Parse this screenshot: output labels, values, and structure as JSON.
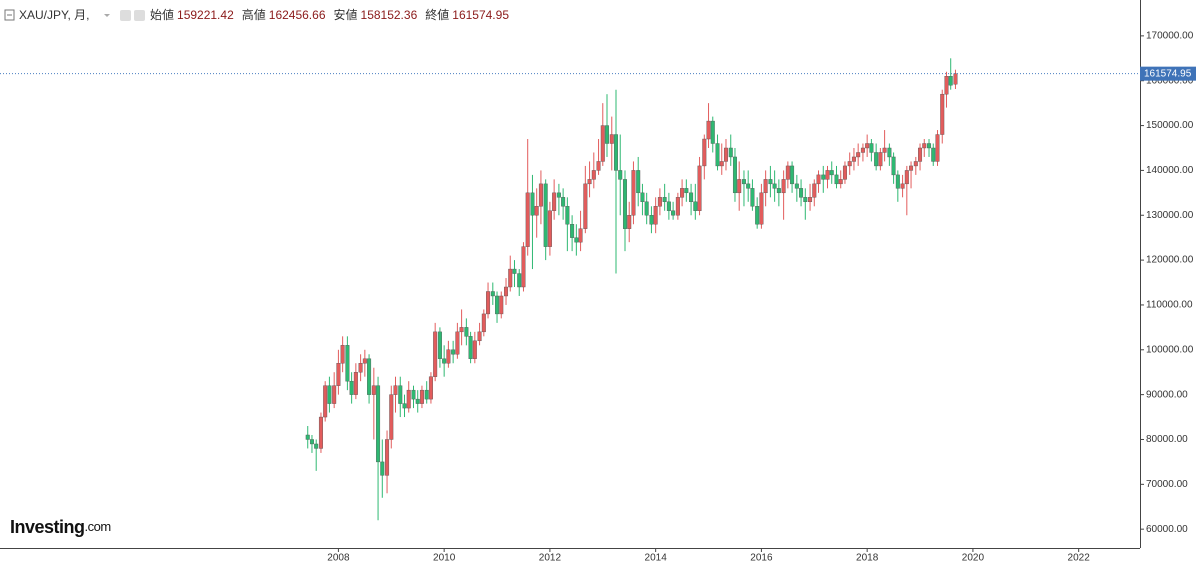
{
  "chart_data": {
    "type": "candlestick",
    "title": "XAU/JPY, 月,",
    "ohlc_labels": [
      "始値",
      "高値",
      "安値",
      "終値"
    ],
    "brand": {
      "name": "Investing",
      "suffix": ".com"
    },
    "up_color": "#e25c5c",
    "down_color": "#2eb872",
    "last_price_line": true,
    "x": [
      2007.42,
      2007.5,
      2007.58,
      2007.67,
      2007.75,
      2007.83,
      2007.92,
      2008,
      2008.08,
      2008.17,
      2008.25,
      2008.33,
      2008.42,
      2008.5,
      2008.58,
      2008.67,
      2008.75,
      2008.83,
      2008.92,
      2009,
      2009.08,
      2009.17,
      2009.25,
      2009.33,
      2009.42,
      2009.5,
      2009.58,
      2009.67,
      2009.75,
      2009.83,
      2009.92,
      2010,
      2010.08,
      2010.17,
      2010.25,
      2010.33,
      2010.42,
      2010.5,
      2010.58,
      2010.67,
      2010.75,
      2010.83,
      2010.92,
      2011,
      2011.08,
      2011.17,
      2011.25,
      2011.33,
      2011.42,
      2011.5,
      2011.58,
      2011.67,
      2011.75,
      2011.83,
      2011.92,
      2012,
      2012.08,
      2012.17,
      2012.25,
      2012.33,
      2012.42,
      2012.5,
      2012.58,
      2012.67,
      2012.75,
      2012.83,
      2012.92,
      2013,
      2013.08,
      2013.17,
      2013.25,
      2013.33,
      2013.42,
      2013.5,
      2013.58,
      2013.67,
      2013.75,
      2013.83,
      2013.92,
      2014,
      2014.08,
      2014.17,
      2014.25,
      2014.33,
      2014.42,
      2014.5,
      2014.58,
      2014.67,
      2014.75,
      2014.83,
      2014.92,
      2015,
      2015.08,
      2015.17,
      2015.25,
      2015.33,
      2015.42,
      2015.5,
      2015.58,
      2015.67,
      2015.75,
      2015.83,
      2015.92,
      2016,
      2016.08,
      2016.17,
      2016.25,
      2016.33,
      2016.42,
      2016.5,
      2016.58,
      2016.67,
      2016.75,
      2016.83,
      2016.92,
      2017,
      2017.08,
      2017.17,
      2017.25,
      2017.33,
      2017.42,
      2017.5,
      2017.58,
      2017.67,
      2017.75,
      2017.83,
      2017.92,
      2018,
      2018.08,
      2018.17,
      2018.25,
      2018.33,
      2018.42,
      2018.5,
      2018.58,
      2018.67,
      2018.75,
      2018.83,
      2018.92,
      2019,
      2019.08,
      2019.17,
      2019.25,
      2019.33,
      2019.42,
      2019.5,
      2019.58,
      2019.67
    ],
    "open": [
      81000,
      80000,
      79000,
      78000,
      85000,
      92000,
      88000,
      92000,
      97000,
      101000,
      93000,
      90000,
      95000,
      97000,
      98000,
      90000,
      92000,
      75000,
      72000,
      80000,
      90000,
      92000,
      88000,
      87000,
      91000,
      89000,
      88000,
      91000,
      89000,
      94000,
      104000,
      98000,
      97000,
      100000,
      99000,
      104000,
      105000,
      103000,
      98000,
      102000,
      104000,
      108000,
      113000,
      112000,
      108000,
      112000,
      114000,
      118000,
      117000,
      114000,
      123000,
      135000,
      130000,
      132000,
      137000,
      123000,
      131000,
      135000,
      134000,
      132000,
      128000,
      125000,
      124000,
      127000,
      137000,
      138000,
      140000,
      142000,
      150000,
      146000,
      148000,
      140000,
      138000,
      127000,
      130000,
      140000,
      135000,
      133000,
      130000,
      128000,
      132000,
      134000,
      133000,
      131000,
      130000,
      134000,
      136000,
      135000,
      133000,
      131000,
      141000,
      147000,
      151000,
      146000,
      141000,
      142000,
      145000,
      143000,
      135000,
      138000,
      137000,
      136000,
      132000,
      128000,
      135000,
      138000,
      137000,
      136000,
      135000,
      138000,
      141000,
      137000,
      136000,
      134000,
      133000,
      134000,
      137000,
      139000,
      138000,
      140000,
      139000,
      137000,
      138000,
      141000,
      142000,
      143000,
      144000,
      145000,
      146000,
      144000,
      141000,
      144000,
      145000,
      143000,
      139000,
      136000,
      137000,
      140000,
      141000,
      142000,
      145000,
      146000,
      145000,
      142000,
      148000,
      157000,
      161000,
      159221.42
    ],
    "high": [
      83000,
      81000,
      80000,
      86000,
      93000,
      94000,
      95000,
      100000,
      103000,
      103000,
      95000,
      97000,
      99000,
      100000,
      99000,
      96000,
      94000,
      80000,
      82000,
      92000,
      94000,
      94000,
      90000,
      93000,
      92000,
      91000,
      92000,
      93000,
      95000,
      106000,
      105000,
      101000,
      102000,
      102000,
      106000,
      109000,
      107000,
      104000,
      104000,
      106000,
      109000,
      115000,
      115000,
      113000,
      113000,
      116000,
      121000,
      120000,
      118000,
      124000,
      147000,
      139000,
      136000,
      140000,
      138000,
      133000,
      138000,
      137000,
      136000,
      134000,
      130000,
      128000,
      131000,
      141000,
      142000,
      144000,
      147000,
      155000,
      157000,
      152000,
      158000,
      148000,
      140000,
      133000,
      142000,
      143000,
      137000,
      135000,
      132000,
      134000,
      136000,
      137000,
      135000,
      133000,
      135000,
      138000,
      138000,
      137000,
      137000,
      143000,
      148000,
      155000,
      152000,
      148000,
      146000,
      147000,
      148000,
      145000,
      142000,
      140000,
      140000,
      138000,
      134000,
      137000,
      140000,
      141000,
      140000,
      138000,
      140000,
      142000,
      142000,
      139000,
      138000,
      136000,
      137000,
      138000,
      140000,
      141000,
      141000,
      142000,
      141000,
      140000,
      142000,
      144000,
      145000,
      146000,
      146000,
      148000,
      147000,
      146000,
      145000,
      149000,
      146000,
      144000,
      140000,
      139000,
      141000,
      142000,
      143000,
      146000,
      147000,
      147000,
      146000,
      149000,
      158000,
      162000,
      165000,
      162456.66
    ],
    "low": [
      78000,
      77000,
      73000,
      77000,
      84000,
      86000,
      87000,
      90000,
      95000,
      91000,
      88000,
      89000,
      93000,
      94000,
      88000,
      80000,
      62000,
      67000,
      68000,
      78000,
      86000,
      85000,
      85000,
      86000,
      87000,
      86000,
      87000,
      88000,
      88000,
      93000,
      96000,
      94000,
      96000,
      97000,
      98000,
      101000,
      101000,
      97000,
      97000,
      101000,
      103000,
      107000,
      110000,
      106000,
      107000,
      110000,
      113000,
      114000,
      112000,
      113000,
      121000,
      118000,
      125000,
      128000,
      120000,
      121000,
      129000,
      130000,
      129000,
      122000,
      122000,
      121000,
      122000,
      126000,
      134000,
      136000,
      139000,
      141000,
      143000,
      140000,
      117000,
      130000,
      122000,
      124000,
      128000,
      132000,
      130000,
      128000,
      126000,
      126000,
      130000,
      131000,
      129000,
      129000,
      129000,
      132000,
      133000,
      130000,
      129000,
      130000,
      138000,
      145000,
      144000,
      140000,
      139000,
      140000,
      141000,
      133000,
      131000,
      132000,
      133000,
      131000,
      127000,
      127000,
      132000,
      134000,
      133000,
      132000,
      129000,
      136000,
      135000,
      133000,
      132000,
      129000,
      131000,
      132000,
      135000,
      135000,
      136000,
      137000,
      136000,
      136000,
      137000,
      139000,
      140000,
      141000,
      142000,
      143000,
      142000,
      140000,
      140000,
      142000,
      141000,
      137000,
      133000,
      134000,
      130000,
      136000,
      139000,
      140000,
      143000,
      143000,
      141000,
      141000,
      146000,
      154000,
      158000,
      158152.36
    ],
    "close": [
      80000,
      79000,
      78000,
      85000,
      92000,
      88000,
      92000,
      97000,
      101000,
      93000,
      90000,
      95000,
      97000,
      98000,
      90000,
      92000,
      75000,
      72000,
      80000,
      90000,
      92000,
      88000,
      87000,
      91000,
      89000,
      88000,
      91000,
      89000,
      94000,
      104000,
      98000,
      97000,
      100000,
      99000,
      104000,
      105000,
      103000,
      98000,
      102000,
      104000,
      108000,
      113000,
      112000,
      108000,
      112000,
      114000,
      118000,
      117000,
      114000,
      123000,
      135000,
      130000,
      132000,
      137000,
      123000,
      131000,
      135000,
      134000,
      132000,
      128000,
      125000,
      124000,
      127000,
      137000,
      138000,
      140000,
      142000,
      150000,
      146000,
      148000,
      140000,
      138000,
      127000,
      130000,
      140000,
      135000,
      133000,
      130000,
      128000,
      132000,
      134000,
      133000,
      131000,
      130000,
      134000,
      136000,
      135000,
      133000,
      131000,
      141000,
      147000,
      151000,
      146000,
      141000,
      142000,
      145000,
      143000,
      135000,
      138000,
      137000,
      136000,
      132000,
      128000,
      135000,
      138000,
      137000,
      136000,
      135000,
      138000,
      141000,
      137000,
      136000,
      134000,
      133000,
      134000,
      137000,
      139000,
      138000,
      140000,
      139000,
      137000,
      138000,
      141000,
      142000,
      143000,
      144000,
      145000,
      146000,
      144000,
      141000,
      144000,
      145000,
      143000,
      139000,
      136000,
      137000,
      140000,
      141000,
      142000,
      145000,
      146000,
      145000,
      142000,
      148000,
      157000,
      161000,
      159000,
      161574.95
    ],
    "xlim": [
      2001.6,
      2023.16
    ],
    "xticks": [
      2008,
      2010,
      2012,
      2014,
      2016,
      2018,
      2020,
      2022
    ],
    "ylim": [
      55800,
      178000
    ],
    "yticks": [
      {
        "value": 60000,
        "label": "60000.00"
      },
      {
        "value": 70000,
        "label": "70000.00"
      },
      {
        "value": 80000,
        "label": "80000.00"
      },
      {
        "value": 90000,
        "label": "90000.00"
      },
      {
        "value": 100000,
        "label": "100000.00"
      },
      {
        "value": 110000,
        "label": "110000.00"
      },
      {
        "value": 120000,
        "label": "120000.00"
      },
      {
        "value": 130000,
        "label": "130000.00"
      },
      {
        "value": 140000,
        "label": "140000.00"
      },
      {
        "value": 150000,
        "label": "150000.00"
      },
      {
        "value": 160000,
        "label": "160000.00"
      },
      {
        "value": 170000,
        "label": "170000.00"
      }
    ]
  }
}
